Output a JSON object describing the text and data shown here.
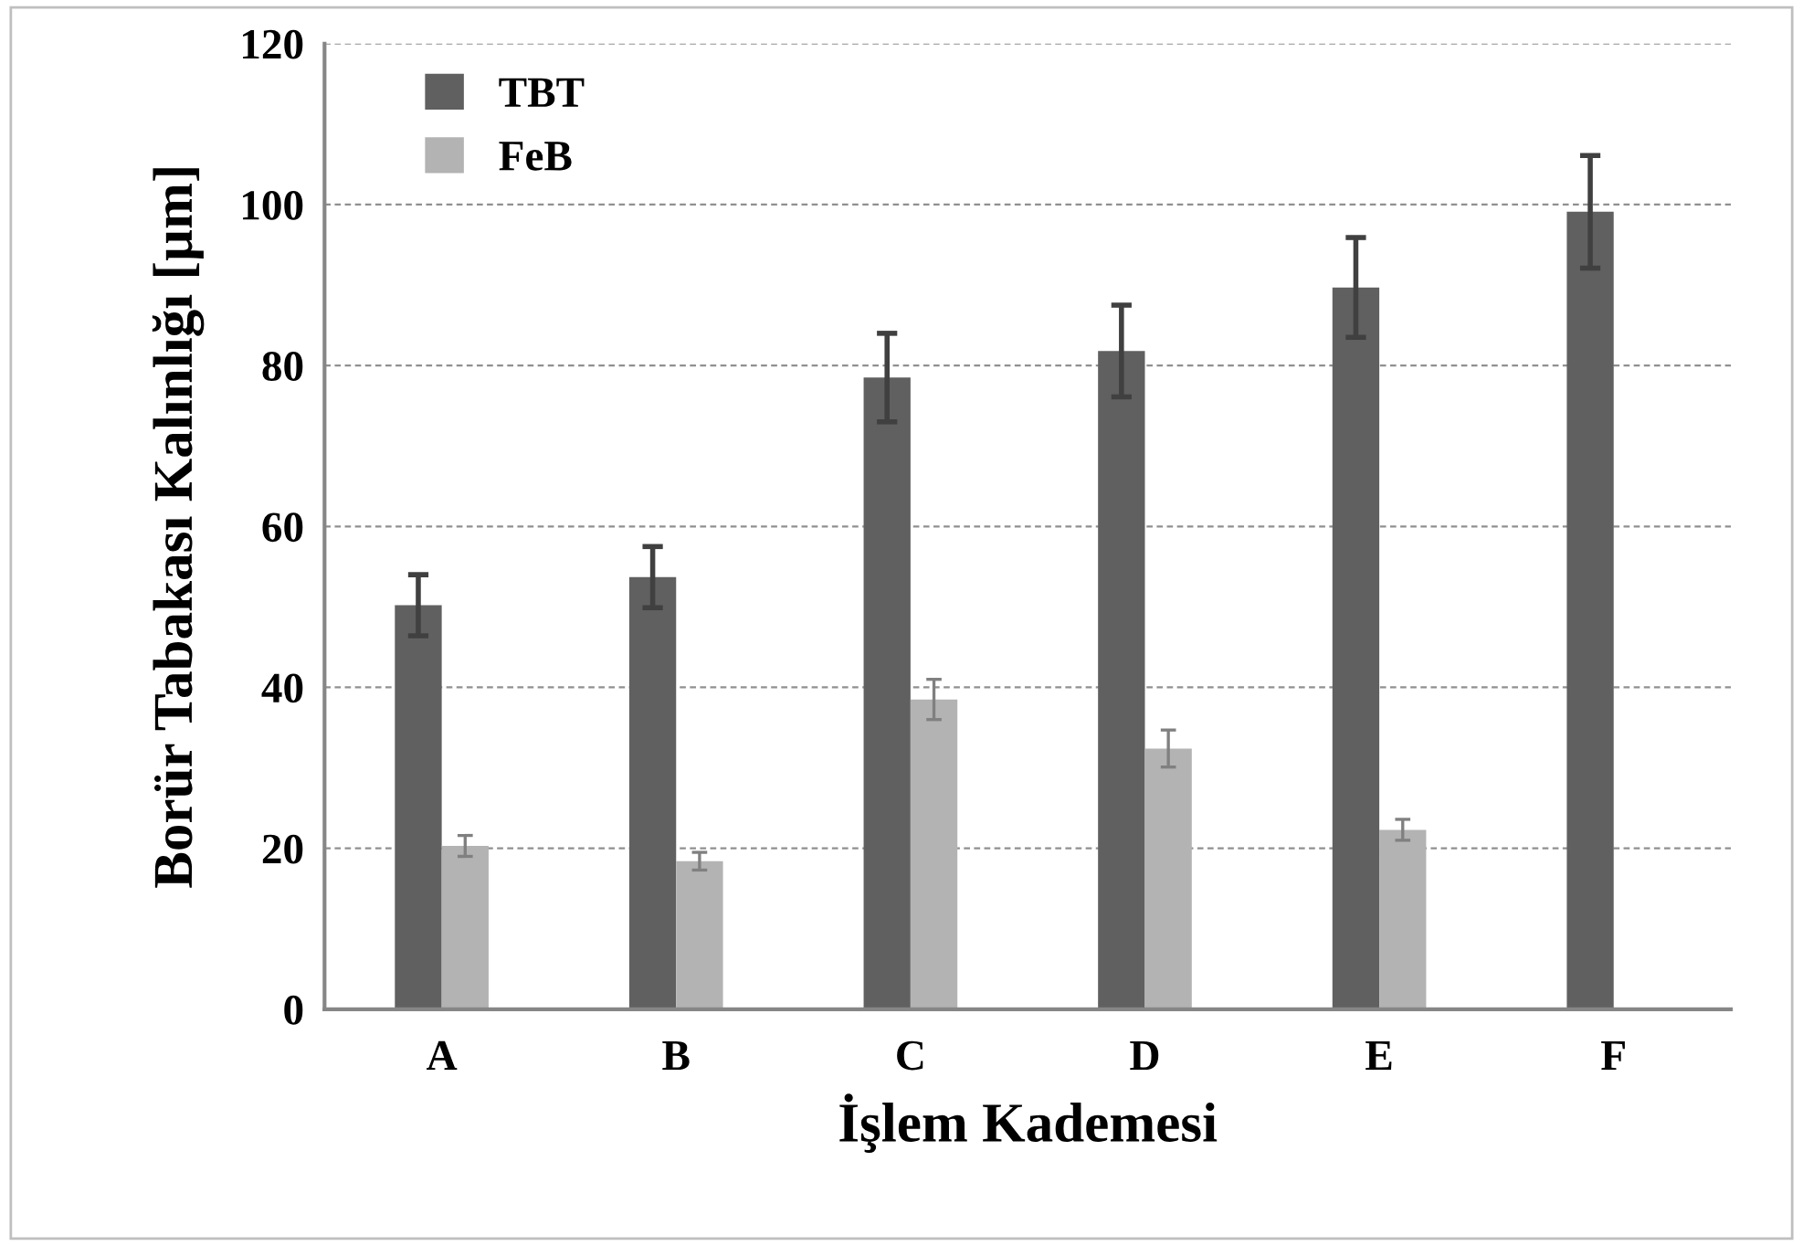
{
  "chart_data": {
    "type": "bar",
    "xlabel": "İşlem Kademesi",
    "ylabel": "Borür Tabakası Kalınlığı [µm]",
    "categories": [
      "A",
      "B",
      "C",
      "D",
      "E",
      "F"
    ],
    "series": [
      {
        "name": "TBT",
        "color": "#606060",
        "values": [
          50.2,
          53.7,
          78.5,
          81.8,
          89.7,
          99.1
        ],
        "errors": [
          3.8,
          3.8,
          5.5,
          5.7,
          6.2,
          7.0
        ]
      },
      {
        "name": "FeB",
        "color": "#b3b3b3",
        "values": [
          20.3,
          18.4,
          38.5,
          32.4,
          22.3,
          null
        ],
        "errors": [
          1.3,
          1.1,
          2.5,
          2.3,
          1.3,
          null
        ]
      }
    ],
    "ylim": [
      0,
      120
    ],
    "yticks": [
      0,
      20,
      40,
      60,
      80,
      100,
      120
    ],
    "grid": "y",
    "legend": "top left"
  }
}
